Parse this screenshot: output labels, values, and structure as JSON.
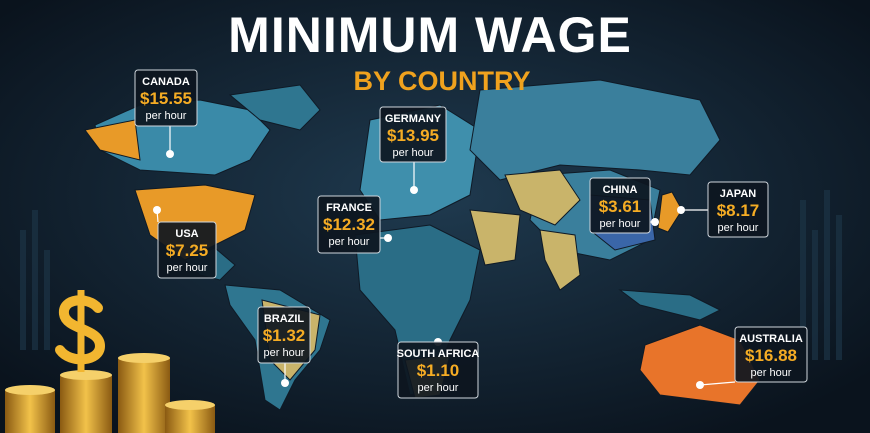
{
  "header": {
    "title": "MINIMUM WAGE",
    "subtitle": "BY COUNTRY"
  },
  "callouts": [
    {
      "country": "CANADA",
      "wage": "$15.55",
      "unit": "per hour"
    },
    {
      "country": "USA",
      "wage": "$7.25",
      "unit": "per hour"
    },
    {
      "country": "GERMANY",
      "wage": "$13.95",
      "unit": "per hour"
    },
    {
      "country": "FRANCE",
      "wage": "$12.32",
      "unit": "per hour"
    },
    {
      "country": "CHINA",
      "wage": "$3.61",
      "unit": "per hour"
    },
    {
      "country": "JAPAN",
      "wage": "$8.17",
      "unit": "per hour"
    },
    {
      "country": "BRAZIL",
      "wage": "$1.32",
      "unit": "per hour"
    },
    {
      "country": "SOUTH AFRICA",
      "wage": "$1.10",
      "unit": "per hour"
    },
    {
      "country": "AUSTRALIA",
      "wage": "$16.88",
      "unit": "per hour"
    }
  ]
}
